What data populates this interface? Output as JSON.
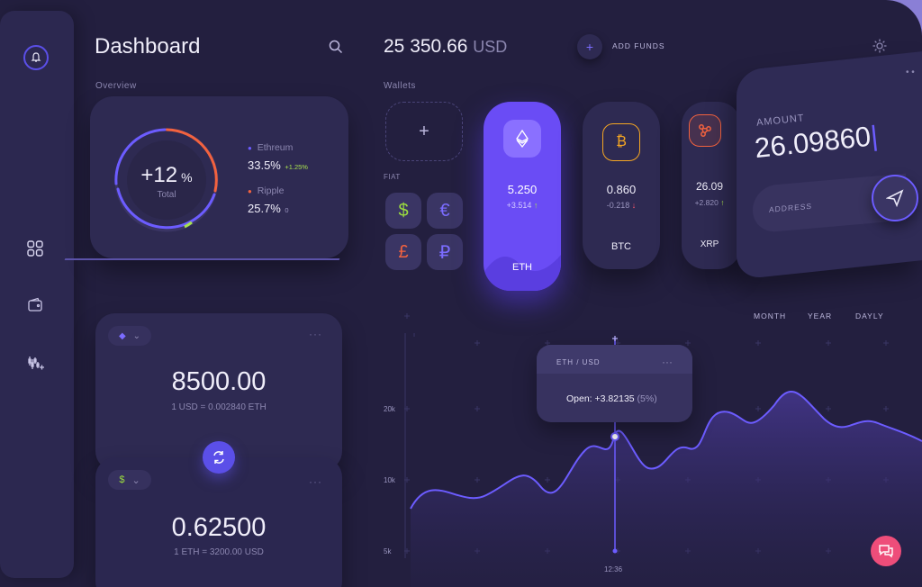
{
  "header": {
    "title": "Dashboard",
    "balance": "25 350.66",
    "currency": "USD",
    "add_funds": "ADD FUNDS"
  },
  "overview": {
    "label": "Overview",
    "center_value": "+12",
    "center_unit": "%",
    "center_caption": "Total",
    "items": [
      {
        "name": "Ethreum",
        "value": "33.5%",
        "change": "+1.25%",
        "color": "#6c5cff",
        "change_color": "#a8e04f"
      },
      {
        "name": "Ripple",
        "value": "25.7%",
        "change": "0",
        "color": "#f2623f",
        "change_color": "#9a95bf"
      }
    ]
  },
  "wallets": {
    "label": "Wallets",
    "fiat_label": "FIAT",
    "fiat": [
      {
        "symbol": "$",
        "color": "#9bdc3f"
      },
      {
        "symbol": "€",
        "color": "#7b6cff"
      },
      {
        "symbol": "£",
        "color": "#f2623f"
      },
      {
        "symbol": "₽",
        "color": "#7b6cff"
      }
    ],
    "coins": [
      {
        "name": "ETH",
        "value": "5.250",
        "change": "+3.514",
        "dir": "up"
      },
      {
        "name": "BTC",
        "value": "0.860",
        "change": "-0.218",
        "dir": "down"
      },
      {
        "name": "XRP",
        "value": "26.09",
        "change": "+2.820",
        "dir": "up"
      }
    ]
  },
  "send": {
    "amount_label": "AMOUNT",
    "amount_value": "26.09860",
    "address_placeholder": "ADDRESS"
  },
  "converter": {
    "top_value": "8500.00",
    "top_rate": "1 USD = 0.002840 ETH",
    "bottom_value": "0.62500",
    "bottom_rate": "1 ETH = 3200.00 USD",
    "bottom_symbol": "$"
  },
  "chart_data": {
    "type": "area",
    "timeframes": [
      "MONTH",
      "YEAR",
      "DAYLY"
    ],
    "y_ticks": [
      "20k",
      "10k",
      "5k"
    ],
    "x_label": "12:36",
    "tooltip_title": "ETH / USD",
    "tooltip_text_label": "Open:",
    "tooltip_value": "+3.82135",
    "tooltip_pct": "(5%)"
  },
  "colors": {
    "accent": "#5b4fe8",
    "eth": "#6c5cff",
    "btc": "#f5a623",
    "xrp": "#f2623f",
    "positive": "#a8e04f",
    "negative": "#ff5a6e"
  }
}
